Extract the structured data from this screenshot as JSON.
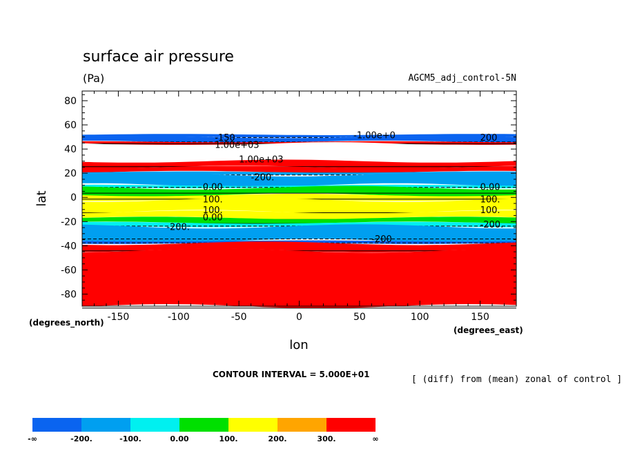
{
  "chart_data": {
    "type": "heatmap",
    "title": "surface air pressure",
    "units": "(Pa)",
    "dataset": "AGCM5_adj_control-5N",
    "xlabel": "lon",
    "ylabel": "lat",
    "x_units": "(degrees_east)",
    "y_units": "(degrees_north)",
    "xlim": [
      -180,
      180
    ],
    "ylim": [
      -90,
      90
    ],
    "x_ticks": [
      -150,
      -100,
      -50,
      0,
      50,
      100,
      150
    ],
    "x_tick_labels": [
      "-150",
      "-100",
      "-50",
      "0",
      "50",
      "100",
      "150"
    ],
    "y_ticks": [
      80,
      60,
      40,
      20,
      0,
      -20,
      -40,
      -60,
      -80
    ],
    "y_tick_labels": [
      "80",
      "60",
      "40",
      "20",
      "0",
      "-20",
      "-40",
      "-60",
      "-80"
    ],
    "contour_interval_text": "CONTOUR INTERVAL = 5.000E+01",
    "description": "[ (diff) from (mean) zonal of control ]",
    "bands": [
      {
        "lat_top": 88,
        "lat_bottom": 52,
        "value": "undefined"
      },
      {
        "lat_top": 52,
        "lat_bottom": 50,
        "value": -250
      },
      {
        "lat_top": 50,
        "lat_bottom": 46,
        "value": -250
      },
      {
        "lat_top": 46,
        "lat_bottom": 44,
        "value": 400
      },
      {
        "lat_top": 44,
        "lat_bottom": 30,
        "value": "undefined"
      },
      {
        "lat_top": 30,
        "lat_bottom": 25,
        "value": 400
      },
      {
        "lat_top": 25,
        "lat_bottom": 21,
        "value": 350
      },
      {
        "lat_top": 21,
        "lat_bottom": 19,
        "value": -150
      },
      {
        "lat_top": 19,
        "lat_bottom": 10,
        "value": -150
      },
      {
        "lat_top": 10,
        "lat_bottom": 8,
        "value": -50
      },
      {
        "lat_top": 8,
        "lat_bottom": 2,
        "value": 50
      },
      {
        "lat_top": 2,
        "lat_bottom": -2,
        "value": 100
      },
      {
        "lat_top": -2,
        "lat_bottom": -12,
        "value": 150
      },
      {
        "lat_top": -12,
        "lat_bottom": -17,
        "value": 100
      },
      {
        "lat_top": -17,
        "lat_bottom": -21,
        "value": 50
      },
      {
        "lat_top": -21,
        "lat_bottom": -24,
        "value": -50
      },
      {
        "lat_top": -24,
        "lat_bottom": -36,
        "value": -150
      },
      {
        "lat_top": -36,
        "lat_bottom": -38,
        "value": -250
      },
      {
        "lat_top": -38,
        "lat_bottom": -44,
        "value": 350
      },
      {
        "lat_top": -44,
        "lat_bottom": -90,
        "value": 400
      }
    ],
    "contour_labels": [
      {
        "text": "-1.00e+0",
        "lon": 45,
        "lat": 49
      },
      {
        "text": "-150",
        "lon": -70,
        "lat": 47
      },
      {
        "text": "1.00e+03",
        "lon": -70,
        "lat": 41
      },
      {
        "text": "200",
        "lon": 150,
        "lat": 47
      },
      {
        "text": "1.00e+03",
        "lon": -50,
        "lat": 29
      },
      {
        "text": "-200.",
        "lon": -40,
        "lat": 14
      },
      {
        "text": "0.00",
        "lon": -80,
        "lat": 6
      },
      {
        "text": "100.",
        "lon": -80,
        "lat": -4
      },
      {
        "text": "100.",
        "lon": -80,
        "lat": -13
      },
      {
        "text": "0.00",
        "lon": -80,
        "lat": -19
      },
      {
        "text": "-200.",
        "lon": -110,
        "lat": -27
      },
      {
        "text": "-200",
        "lon": 60,
        "lat": -37
      },
      {
        "text": "100.",
        "lon": 150,
        "lat": -4
      },
      {
        "text": "100.",
        "lon": 150,
        "lat": -13
      },
      {
        "text": "0.00",
        "lon": 150,
        "lat": 6
      },
      {
        "text": "-200.",
        "lon": 150,
        "lat": -25
      }
    ],
    "colorbar": {
      "colors": [
        "#0a64f0",
        "#009ff0",
        "#00f0f0",
        "#00e000",
        "#ffff00",
        "#ffa500",
        "#ff0000"
      ],
      "labels": [
        "-∞",
        "-200.",
        "-100.",
        "0.00",
        "100.",
        "200.",
        "300.",
        "∞"
      ]
    }
  }
}
